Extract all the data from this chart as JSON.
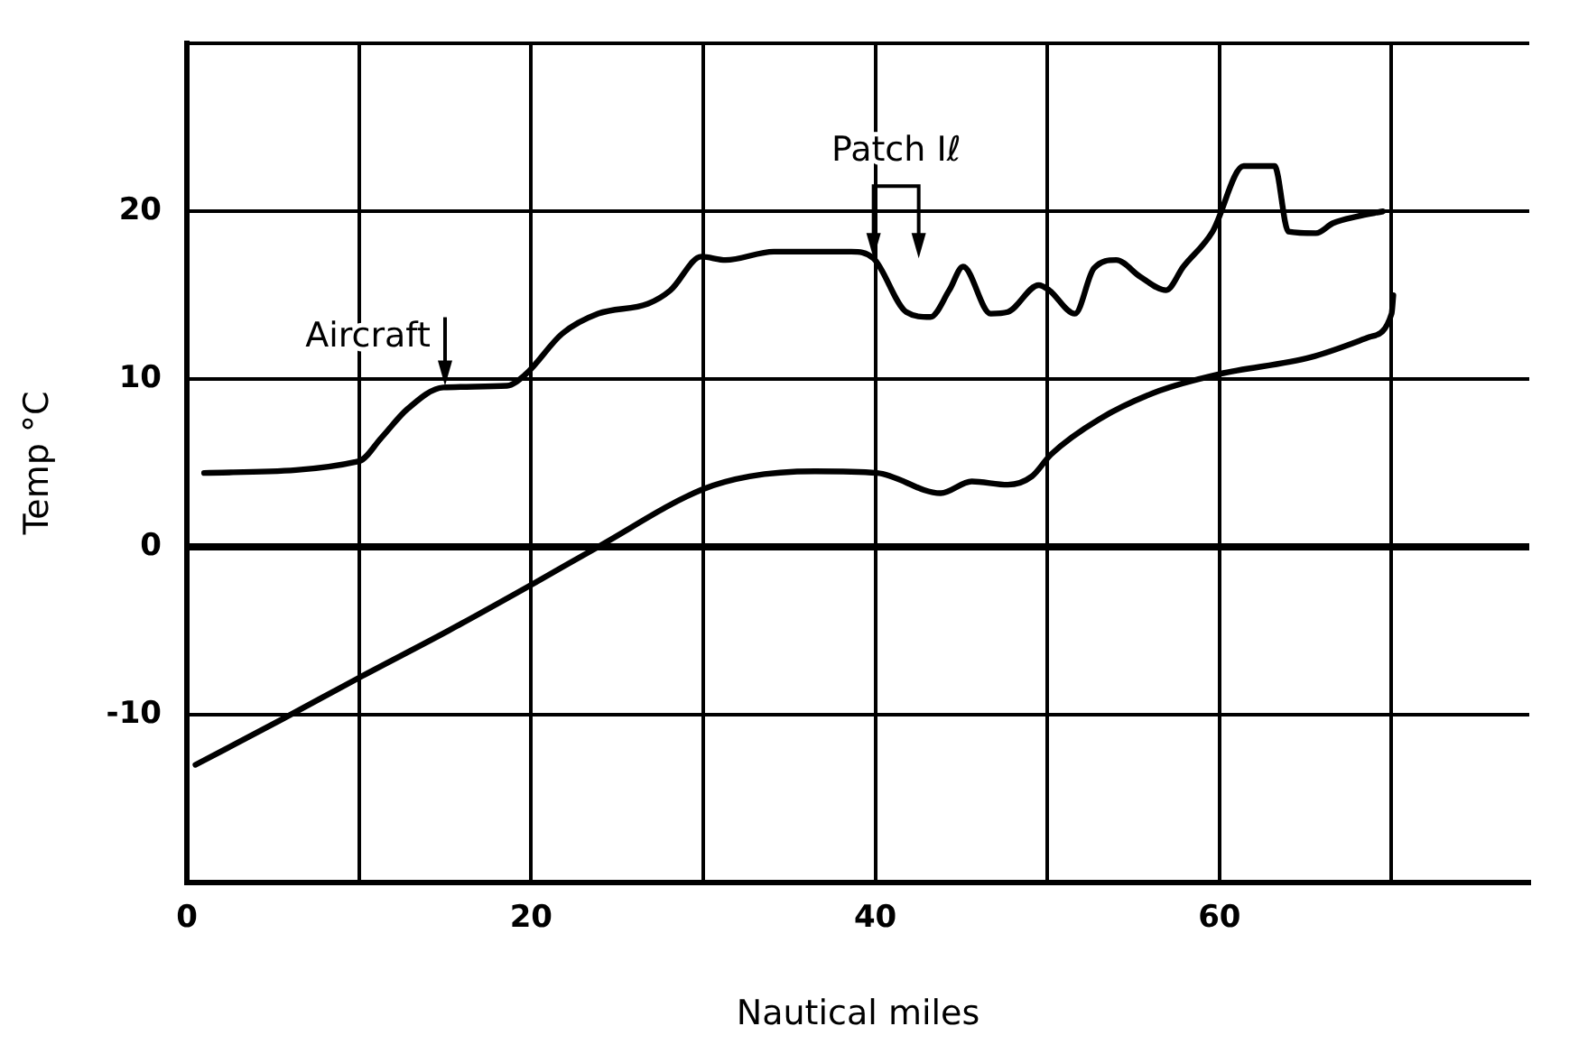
{
  "chart_data": {
    "type": "line",
    "xlabel": "Nautical miles",
    "ylabel": "Temp °C",
    "xlim": [
      0,
      78
    ],
    "xticks": [
      0,
      {
        "value": 10,
        "label": null
      },
      20,
      {
        "value": 30,
        "label": null
      },
      40,
      {
        "value": 50,
        "label": null
      },
      60,
      {
        "value": 70,
        "label": null
      }
    ],
    "ylim": [
      -20,
      30
    ],
    "yticks": [
      {
        "value": -20,
        "label": null
      },
      -10,
      0,
      10,
      20,
      {
        "value": 30,
        "label": null
      }
    ],
    "grid": true,
    "line_style": "solid",
    "marker": "none",
    "ref_lines": [
      {
        "axis": "y",
        "value": 0,
        "color": "#000000"
      }
    ],
    "annotations": [
      {
        "text": "Aircraft",
        "x": 15,
        "y": 9.6
      },
      {
        "text": "Patch Iℓ",
        "x": 39.9,
        "y": 17.2
      }
    ],
    "series": [
      {
        "color": "#000000",
        "x": [
          1.0,
          10.0,
          11.3,
          12.8,
          14.9,
          18.6,
          19.7,
          21.8,
          23.9,
          26.8,
          28.1,
          29.9,
          31.3,
          34.1,
          38.6,
          39.9,
          41.8,
          43.2,
          44.3,
          45.1,
          46.7,
          47.7,
          49.5,
          50.1,
          51.6,
          52.7,
          54.0,
          55.4,
          56.9,
          57.9,
          59.6,
          61.4,
          63.2,
          64.0,
          65.6,
          66.6,
          68.0,
          69.5
        ],
        "values": [
          4.4,
          5.1,
          6.5,
          8.2,
          9.5,
          9.6,
          10.3,
          12.7,
          13.9,
          14.5,
          15.3,
          17.3,
          17.1,
          17.6,
          17.6,
          17.2,
          14.0,
          13.7,
          15.3,
          16.7,
          13.9,
          14.0,
          15.6,
          15.3,
          13.9,
          16.6,
          17.1,
          16.1,
          15.3,
          16.7,
          18.8,
          22.7,
          22.7,
          18.8,
          18.7,
          19.3,
          19.7,
          20.0
        ]
      },
      {
        "color": "#000000",
        "x": [
          0.5,
          5.5,
          10.2,
          15.2,
          20.3,
          23.9,
          29.9,
          32.7,
          36.5,
          40.1,
          43.8,
          45.6,
          47.7,
          49.1,
          50.2,
          53.0,
          56.5,
          60.0,
          65.3,
          68.7,
          70.0,
          70.1
        ],
        "values": [
          -13.0,
          -10.3,
          -7.7,
          -5.0,
          -2.1,
          0,
          3.4,
          4.2,
          4.5,
          4.4,
          3.2,
          3.9,
          3.7,
          4.2,
          5.5,
          7.6,
          9.3,
          10.3,
          11.3,
          12.5,
          13.9,
          15.0
        ]
      }
    ]
  }
}
